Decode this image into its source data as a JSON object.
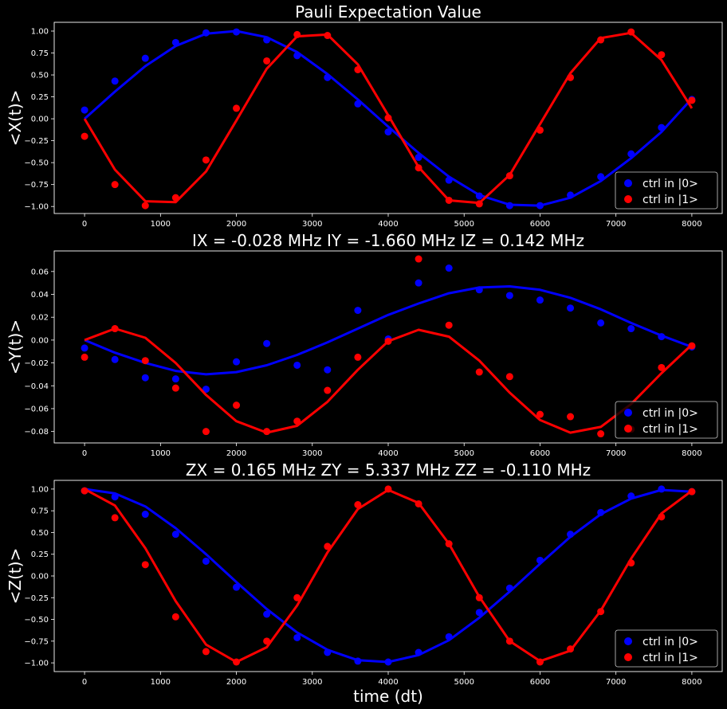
{
  "chart_data": [
    {
      "type": "scatter",
      "title": "Pauli Expectation Value",
      "xlabel": "",
      "ylabel": "<X(t)>",
      "xlim": [
        -400,
        8400
      ],
      "ylim": [
        -1.08,
        1.1
      ],
      "xticks": [
        0,
        1000,
        2000,
        3000,
        4000,
        5000,
        6000,
        7000,
        8000
      ],
      "yticks": [
        1.0,
        0.75,
        0.5,
        0.25,
        0.0,
        -0.25,
        -0.5,
        -0.75,
        -1.0
      ],
      "ytick_labels": [
        "1.00",
        "0.75",
        "0.50",
        "0.25",
        "0.00",
        "−0.25",
        "−0.50",
        "−0.75",
        "−1.00"
      ],
      "legend_loc": "lower-right",
      "x": [
        0,
        400,
        800,
        1200,
        1600,
        2000,
        2400,
        2800,
        3200,
        3600,
        4000,
        4400,
        4800,
        5200,
        5600,
        6000,
        6400,
        6800,
        7200,
        7600,
        8000
      ],
      "series": [
        {
          "name": "ctrl in |0>",
          "color": "#0000ff",
          "points": [
            0.1,
            0.43,
            0.69,
            0.87,
            0.98,
            0.99,
            0.9,
            0.72,
            0.47,
            0.17,
            -0.15,
            -0.44,
            -0.7,
            -0.88,
            -0.99,
            -0.99,
            -0.87,
            -0.66,
            -0.4,
            -0.1,
            0.22
          ],
          "fit": [
            0.0,
            0.31,
            0.6,
            0.83,
            0.97,
            1.0,
            0.93,
            0.76,
            0.51,
            0.22,
            -0.09,
            -0.39,
            -0.66,
            -0.87,
            -0.98,
            -0.99,
            -0.9,
            -0.71,
            -0.45,
            -0.15,
            0.23
          ]
        },
        {
          "name": "ctrl in |1>",
          "color": "#ff0000",
          "points": [
            -0.2,
            -0.75,
            -0.99,
            -0.9,
            -0.47,
            0.12,
            0.66,
            0.96,
            0.95,
            0.56,
            0.01,
            -0.56,
            -0.93,
            -0.97,
            -0.65,
            -0.13,
            0.47,
            0.9,
            0.99,
            0.73,
            0.21
          ],
          "fit": [
            0.0,
            -0.58,
            -0.94,
            -0.95,
            -0.6,
            -0.02,
            0.57,
            0.94,
            0.96,
            0.62,
            0.04,
            -0.55,
            -0.93,
            -0.96,
            -0.64,
            -0.06,
            0.52,
            0.92,
            0.98,
            0.67,
            0.12
          ]
        }
      ]
    },
    {
      "type": "scatter",
      "title": "IX = -0.028 MHz   IY = -1.660 MHz   IZ = 0.142 MHz",
      "xlabel": "",
      "ylabel": "<Y(t)>",
      "xlim": [
        -400,
        8400
      ],
      "ylim": [
        -0.09,
        0.078
      ],
      "xticks": [
        0,
        1000,
        2000,
        3000,
        4000,
        5000,
        6000,
        7000,
        8000
      ],
      "yticks": [
        0.06,
        0.04,
        0.02,
        0.0,
        -0.02,
        -0.04,
        -0.06,
        -0.08
      ],
      "ytick_labels": [
        "0.06",
        "0.04",
        "0.02",
        "0.00",
        "−0.02",
        "−0.04",
        "−0.06",
        "−0.08"
      ],
      "legend_loc": "lower-right",
      "x": [
        0,
        400,
        800,
        1200,
        1600,
        2000,
        2400,
        2800,
        3200,
        3600,
        4000,
        4400,
        4800,
        5200,
        5600,
        6000,
        6400,
        6800,
        7200,
        7600,
        8000
      ],
      "series": [
        {
          "name": "ctrl in |0>",
          "color": "#0000ff",
          "points": [
            -0.007,
            -0.017,
            -0.033,
            -0.034,
            -0.043,
            -0.019,
            -0.003,
            -0.022,
            -0.026,
            0.026,
            0.001,
            0.05,
            0.063,
            0.044,
            0.039,
            0.035,
            0.028,
            0.015,
            0.01,
            0.003,
            -0.006
          ],
          "fit": [
            0.0,
            -0.011,
            -0.02,
            -0.027,
            -0.03,
            -0.028,
            -0.022,
            -0.013,
            -0.002,
            0.01,
            0.022,
            0.032,
            0.041,
            0.046,
            0.047,
            0.044,
            0.037,
            0.027,
            0.015,
            0.004,
            -0.006
          ]
        },
        {
          "name": "ctrl in |1>",
          "color": "#ff0000",
          "points": [
            -0.015,
            0.01,
            -0.018,
            -0.042,
            -0.08,
            -0.057,
            -0.08,
            -0.071,
            -0.044,
            -0.015,
            -0.001,
            0.071,
            0.013,
            -0.028,
            -0.032,
            -0.065,
            -0.067,
            -0.082,
            -0.078,
            -0.024,
            -0.005
          ],
          "fit": [
            0.0,
            0.01,
            0.002,
            -0.02,
            -0.048,
            -0.071,
            -0.081,
            -0.075,
            -0.054,
            -0.026,
            -0.001,
            0.009,
            0.003,
            -0.018,
            -0.046,
            -0.07,
            -0.081,
            -0.076,
            -0.056,
            -0.029,
            -0.004
          ]
        }
      ]
    },
    {
      "type": "scatter",
      "title": "ZX = 0.165 MHz   ZY = 5.337 MHz   ZZ = -0.110 MHz",
      "xlabel": "time (dt)",
      "ylabel": "<Z(t)>",
      "xlim": [
        -400,
        8400
      ],
      "ylim": [
        -1.1,
        1.1
      ],
      "xticks": [
        0,
        1000,
        2000,
        3000,
        4000,
        5000,
        6000,
        7000,
        8000
      ],
      "yticks": [
        1.0,
        0.75,
        0.5,
        0.25,
        0.0,
        -0.25,
        -0.5,
        -0.75,
        -1.0
      ],
      "ytick_labels": [
        "1.00",
        "0.75",
        "0.50",
        "0.25",
        "0.00",
        "−0.25",
        "−0.50",
        "−0.75",
        "−1.00"
      ],
      "legend_loc": "lower-right",
      "x": [
        0,
        400,
        800,
        1200,
        1600,
        2000,
        2400,
        2800,
        3200,
        3600,
        4000,
        4400,
        4800,
        5200,
        5600,
        6000,
        6400,
        6800,
        7200,
        7600,
        8000
      ],
      "series": [
        {
          "name": "ctrl in |0>",
          "color": "#0000ff",
          "points": [
            0.98,
            0.91,
            0.71,
            0.48,
            0.17,
            -0.13,
            -0.44,
            -0.71,
            -0.88,
            -0.98,
            -0.99,
            -0.88,
            -0.7,
            -0.42,
            -0.14,
            0.18,
            0.48,
            0.73,
            0.92,
            1.0,
            0.97
          ],
          "fit": [
            1.0,
            0.95,
            0.8,
            0.55,
            0.25,
            -0.07,
            -0.38,
            -0.65,
            -0.85,
            -0.97,
            -0.99,
            -0.91,
            -0.74,
            -0.48,
            -0.18,
            0.14,
            0.45,
            0.71,
            0.89,
            0.99,
            0.97
          ]
        },
        {
          "name": "ctrl in |1>",
          "color": "#ff0000",
          "points": [
            0.98,
            0.67,
            0.13,
            -0.47,
            -0.87,
            -0.99,
            -0.75,
            -0.25,
            0.34,
            0.82,
            1.0,
            0.83,
            0.37,
            -0.25,
            -0.75,
            -0.99,
            -0.84,
            -0.41,
            0.15,
            0.68,
            0.97
          ],
          "fit": [
            1.0,
            0.81,
            0.32,
            -0.29,
            -0.79,
            -0.99,
            -0.82,
            -0.34,
            0.27,
            0.77,
            0.99,
            0.84,
            0.37,
            -0.24,
            -0.75,
            -0.98,
            -0.86,
            -0.4,
            0.2,
            0.72,
            0.98
          ]
        }
      ]
    }
  ]
}
